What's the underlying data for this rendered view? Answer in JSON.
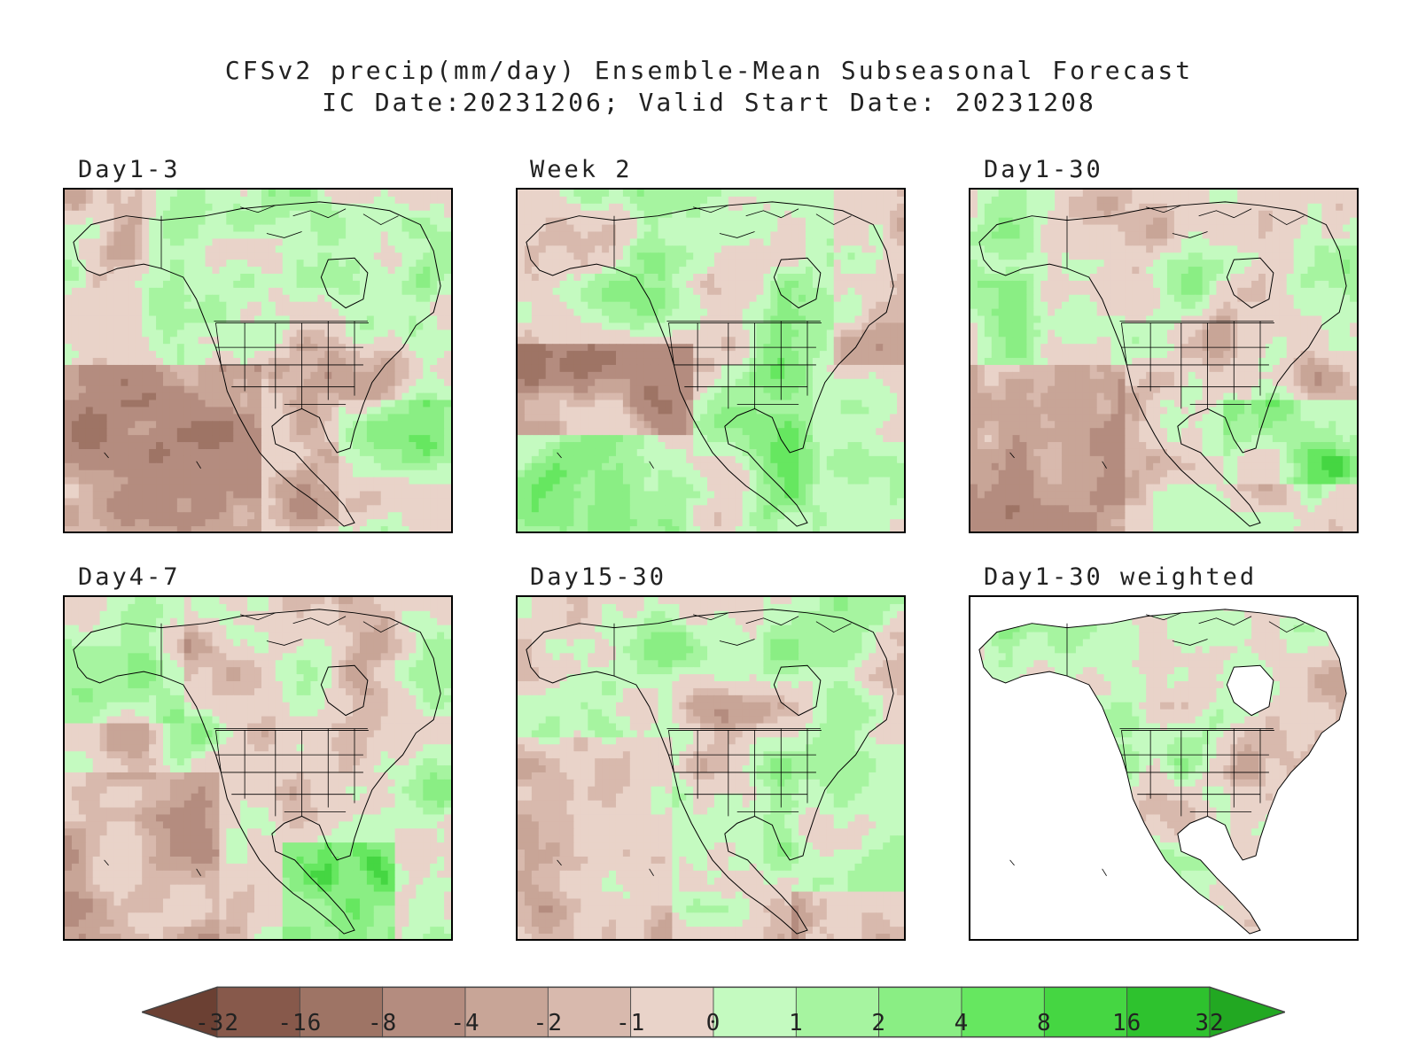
{
  "title": {
    "line1": "CFSv2 precip(mm/day) Ensemble-Mean Subseasonal Forecast",
    "line2": "IC Date:20231206; Valid Start Date: 20231208"
  },
  "panels": [
    {
      "label": "Day1-3",
      "mode": "d13"
    },
    {
      "label": "Week 2",
      "mode": "w2"
    },
    {
      "label": "Day1-30",
      "mode": "d130"
    },
    {
      "label": "Day4-7",
      "mode": "d47"
    },
    {
      "label": "Day15-30",
      "mode": "d1530"
    },
    {
      "label": "Day1-30 weighted",
      "mode": "weighted"
    }
  ],
  "colorbar": {
    "labels": [
      "-32",
      "-16",
      "-8",
      "-4",
      "-2",
      "-1",
      "0",
      "1",
      "2",
      "4",
      "8",
      "16",
      "32"
    ],
    "colors": [
      "#6b4033",
      "#87594b",
      "#9e7465",
      "#b48c7f",
      "#c8a597",
      "#d8b9ad",
      "#e9d3c9",
      "#c4fac0",
      "#a6f4a0",
      "#8aee84",
      "#66e760",
      "#45d642",
      "#2ec22e",
      "#22a822"
    ]
  }
}
